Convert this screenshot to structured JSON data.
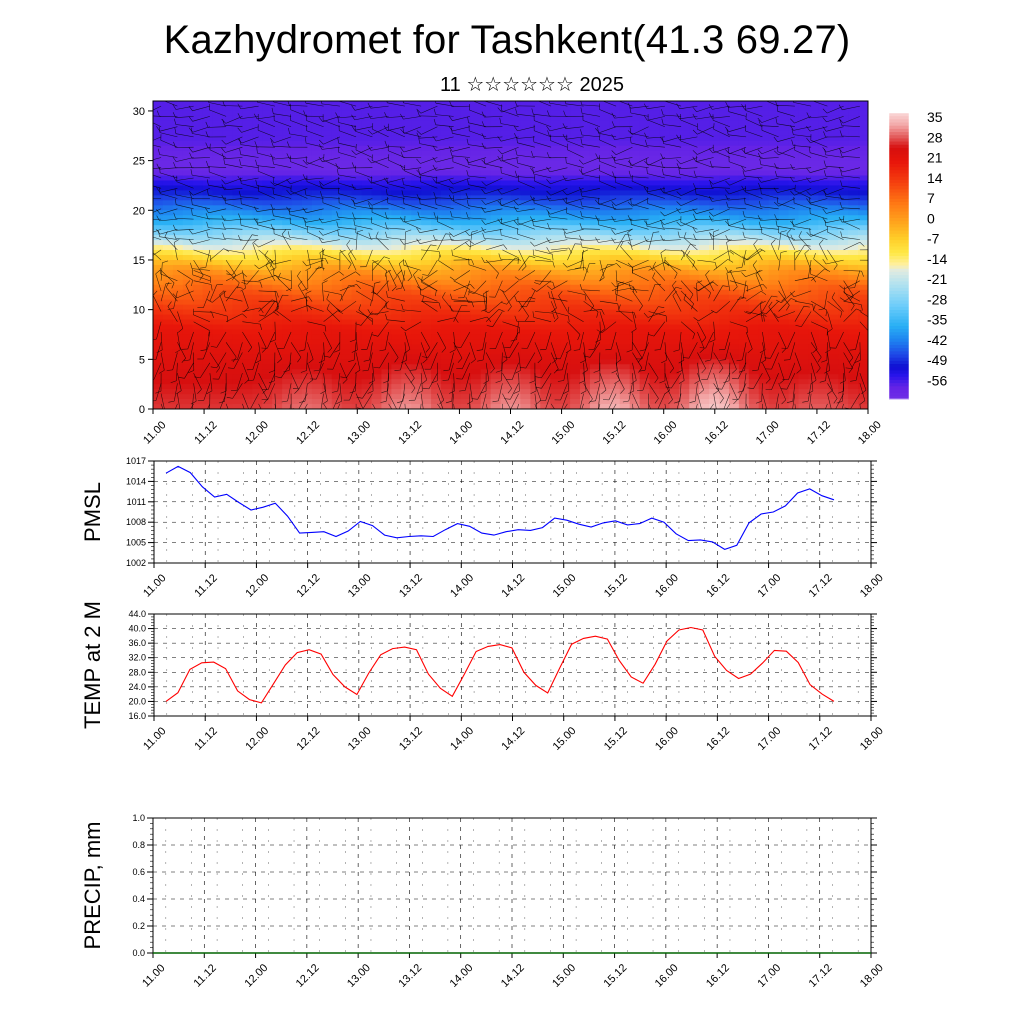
{
  "title": "Kazhydromet for Tashkent(41.3 69.27)",
  "subtitle": "11 ☆☆☆☆☆☆ 2025",
  "time_labels": [
    "11.00",
    "11.12",
    "12.00",
    "12.12",
    "13.00",
    "13.12",
    "14.00",
    "14.12",
    "15.00",
    "15.12",
    "16.00",
    "16.12",
    "17.00",
    "17.12",
    "18.00"
  ],
  "colors": {
    "pmsl": "#0000ff",
    "temp": "#ff0000",
    "precip": "#006400"
  },
  "chart_data": [
    {
      "type": "heatmap",
      "title": "",
      "xlabel": "",
      "ylabel": "",
      "y_ticks": [
        "0",
        "5",
        "10",
        "15",
        "20",
        "25",
        "30"
      ],
      "ylim": [
        0,
        31
      ],
      "x_categories": [
        "11.00",
        "11.12",
        "12.00",
        "12.12",
        "13.00",
        "13.12",
        "14.00",
        "14.12",
        "15.00",
        "15.12",
        "16.00",
        "16.12",
        "17.00",
        "17.12",
        "18.00"
      ],
      "colorbar_labels": [
        "35",
        "28",
        "21",
        "14",
        "7",
        "0",
        "-7",
        "-14",
        "-21",
        "-28",
        "-35",
        "-42",
        "-49",
        "-56"
      ],
      "colorbar_range": [
        -60,
        38
      ],
      "vertical_profile": [
        {
          "y": 0,
          "v": 28
        },
        {
          "y": 4,
          "v": 25
        },
        {
          "y": 8,
          "v": 21
        },
        {
          "y": 10,
          "v": 16
        },
        {
          "y": 12,
          "v": 10
        },
        {
          "y": 14,
          "v": 1
        },
        {
          "y": 15.5,
          "v": -9
        },
        {
          "y": 17,
          "v": -20
        },
        {
          "y": 19,
          "v": -35
        },
        {
          "y": 21,
          "v": -45
        },
        {
          "y": 23,
          "v": -53
        },
        {
          "y": 24,
          "v": -58
        },
        {
          "y": 25,
          "v": -58
        },
        {
          "y": 27,
          "v": -55
        },
        {
          "y": 29,
          "v": -55
        },
        {
          "y": 31,
          "v": -55
        }
      ],
      "warm_cores": [
        {
          "x": "12.12",
          "v": 31
        },
        {
          "x": "13.12",
          "v": 33
        },
        {
          "x": "14.12",
          "v": 33
        },
        {
          "x": "15.12",
          "v": 35
        },
        {
          "x": "16.12",
          "v": 37
        },
        {
          "x": "17.12",
          "v": 30
        }
      ],
      "overlay": "wind barbs"
    },
    {
      "type": "line",
      "ylabel": "PMSL",
      "y_ticks": [
        "1002",
        "1005",
        "1008",
        "1011",
        "1014",
        "1017"
      ],
      "ylim": [
        1002,
        1017
      ],
      "x_tick_labels": [
        "11.00",
        "11.12",
        "12.00",
        "12.12",
        "13.00",
        "13.12",
        "14.00",
        "14.12",
        "15.00",
        "15.12",
        "16.00",
        "16.12",
        "17.00",
        "17.12",
        "18.00"
      ],
      "series": [
        {
          "x_step_hours": 3,
          "values": [
            1015.2,
            1016.2,
            1015.3,
            1013.2,
            1011.7,
            1012.1,
            1010.9,
            1009.8,
            1010.2,
            1010.8,
            1008.9,
            1006.4,
            1006.5,
            1006.6,
            1005.9,
            1006.7,
            1008.1,
            1007.5,
            1006.1,
            1005.7,
            1005.9,
            1006.0,
            1005.9,
            1006.9,
            1007.8,
            1007.4,
            1006.4,
            1006.1,
            1006.6,
            1006.9,
            1006.8,
            1007.2,
            1008.6,
            1008.3,
            1007.7,
            1007.3,
            1007.9,
            1008.2,
            1007.6,
            1007.8,
            1008.6,
            1008.0,
            1006.3,
            1005.3,
            1005.4,
            1005.1,
            1004.0,
            1004.6,
            1007.9,
            1009.2,
            1009.5,
            1010.4,
            1012.3,
            1012.9,
            1011.9,
            1011.3
          ]
        }
      ]
    },
    {
      "type": "line",
      "ylabel": "TEMP at 2 M",
      "y_ticks": [
        "16.0",
        "20.0",
        "24.0",
        "28.0",
        "32.0",
        "36.0",
        "40.0",
        "44.0"
      ],
      "ylim": [
        16,
        44
      ],
      "x_tick_labels": [
        "11.00",
        "11.12",
        "12.00",
        "12.12",
        "13.00",
        "13.12",
        "14.00",
        "14.12",
        "15.00",
        "15.12",
        "16.00",
        "16.12",
        "17.00",
        "17.12",
        "18.00"
      ],
      "series": [
        {
          "x_step_hours": 3,
          "values": [
            20.0,
            22.4,
            28.8,
            30.6,
            30.8,
            29.0,
            22.9,
            20.5,
            19.6,
            24.8,
            30.0,
            33.4,
            34.2,
            33.0,
            27.4,
            24.0,
            21.9,
            27.8,
            32.8,
            34.5,
            34.9,
            34.2,
            27.5,
            23.6,
            21.4,
            27.4,
            33.7,
            35.1,
            35.6,
            34.7,
            28.0,
            24.4,
            22.3,
            29.1,
            35.7,
            37.3,
            37.9,
            37.1,
            31.2,
            26.7,
            25.0,
            30.2,
            36.6,
            39.6,
            40.3,
            39.6,
            32.4,
            28.5,
            26.3,
            27.5,
            30.5,
            34.0,
            33.8,
            30.7,
            24.6,
            22.0,
            20.0
          ]
        }
      ]
    },
    {
      "type": "line",
      "ylabel": "PRECIP, mm",
      "y_ticks": [
        "0.0",
        "0.2",
        "0.4",
        "0.6",
        "0.8",
        "1.0"
      ],
      "ylim": [
        0,
        1
      ],
      "x_tick_labels": [
        "11.00",
        "11.12",
        "12.00",
        "12.12",
        "13.00",
        "13.12",
        "14.00",
        "14.12",
        "15.00",
        "15.12",
        "16.00",
        "16.12",
        "17.00",
        "17.12",
        "18.00"
      ],
      "series": [
        {
          "x_step_hours": 3,
          "values": [
            0,
            0,
            0,
            0,
            0,
            0,
            0,
            0,
            0,
            0,
            0,
            0,
            0,
            0,
            0,
            0,
            0,
            0,
            0,
            0,
            0,
            0,
            0,
            0,
            0,
            0,
            0,
            0,
            0,
            0,
            0,
            0,
            0,
            0,
            0,
            0,
            0,
            0,
            0,
            0,
            0,
            0,
            0,
            0,
            0,
            0,
            0,
            0,
            0,
            0,
            0,
            0,
            0,
            0,
            0,
            0,
            0
          ]
        }
      ]
    }
  ]
}
